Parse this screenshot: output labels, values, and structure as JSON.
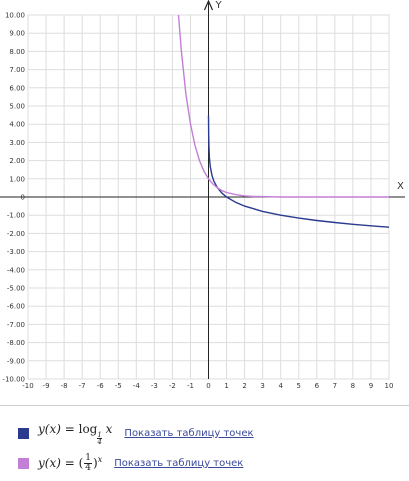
{
  "chart_data": {
    "type": "line",
    "title": "",
    "xlabel": "X",
    "ylabel": "Y",
    "xlim": [
      -10,
      10
    ],
    "ylim": [
      -10,
      10
    ],
    "x_ticks": [
      "-10",
      "-9",
      "-8",
      "-7",
      "-6",
      "-5",
      "-4",
      "-3",
      "-2",
      "-1",
      "0",
      "1",
      "2",
      "3",
      "4",
      "5",
      "6",
      "7",
      "8",
      "9",
      "10"
    ],
    "y_ticks": [
      "10.00",
      "9.00",
      "8.00",
      "7.00",
      "6.00",
      "5.00",
      "4.00",
      "3.00",
      "2.00",
      "1.00",
      "0",
      "-1.00",
      "-2.00",
      "-3.00",
      "-4.00",
      "-5.00",
      "-6.00",
      "-7.00",
      "-8.00",
      "-9.00",
      "-10.00"
    ],
    "grid": true,
    "series": [
      {
        "color": "#2a3a8f",
        "x": [
          0.002,
          0.005,
          0.01,
          0.02,
          0.05,
          0.1,
          0.2,
          0.3,
          0.5,
          0.75,
          1,
          1.5,
          2,
          3,
          4,
          5,
          6,
          7,
          8,
          9,
          10
        ],
        "y": [
          4.48,
          3.82,
          3.32,
          2.82,
          2.16,
          1.66,
          1.16,
          0.87,
          0.5,
          0.21,
          0,
          -0.29,
          -0.5,
          -0.79,
          -1.0,
          -1.16,
          -1.29,
          -1.4,
          -1.5,
          -1.58,
          -1.66
        ]
      },
      {
        "color": "#c37fd6",
        "x": [
          -1.66,
          -1.5,
          -1.25,
          -1,
          -0.75,
          -0.5,
          -0.25,
          0,
          0.25,
          0.5,
          0.75,
          1,
          1.5,
          2,
          2.5,
          3,
          4,
          5,
          6,
          7,
          8,
          9,
          10
        ],
        "y": [
          10.0,
          8.0,
          5.66,
          4.0,
          2.83,
          2.0,
          1.41,
          1.0,
          0.71,
          0.5,
          0.35,
          0.25,
          0.13,
          0.06,
          0.03,
          0.02,
          0.0,
          0.0,
          0.0,
          0.0,
          0.0,
          0.0,
          0.0
        ]
      }
    ]
  },
  "legend": {
    "items": [
      {
        "color": "#2a3a8f",
        "lhs": "y(x)",
        "eq": " = log",
        "sub_num": "1",
        "sub_den": "4",
        "arg": " x",
        "link": "Показать таблицу точек"
      },
      {
        "color": "#c37fd6",
        "lhs": "y(x)",
        "eq": " = (",
        "frac_num": "1",
        "frac_den": "4",
        "close": ")",
        "exp": "x",
        "link": "Показать таблицу точек"
      }
    ]
  }
}
